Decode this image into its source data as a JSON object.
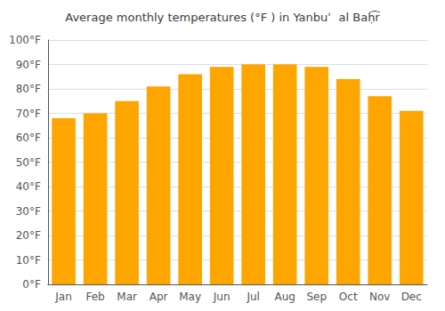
{
  "chart_data": {
    "type": "bar",
    "title": "Average monthly temperatures (°F ) in Yanbuʾ  al Baḥ͡r",
    "categories": [
      "Jan",
      "Feb",
      "Mar",
      "Apr",
      "May",
      "Jun",
      "Jul",
      "Aug",
      "Sep",
      "Oct",
      "Nov",
      "Dec"
    ],
    "values": [
      68,
      70,
      75,
      81,
      86,
      89,
      90,
      90,
      89,
      84,
      77,
      71
    ],
    "color": "#FFA500",
    "ylim": [
      0,
      100
    ],
    "yticks": [
      {
        "value": 0,
        "label": "0°F"
      },
      {
        "value": 10,
        "label": "10°F"
      },
      {
        "value": 20,
        "label": "20°F"
      },
      {
        "value": 30,
        "label": "30°F"
      },
      {
        "value": 40,
        "label": "40°F"
      },
      {
        "value": 50,
        "label": "50°F"
      },
      {
        "value": 60,
        "label": "60°F"
      },
      {
        "value": 70,
        "label": "70°F"
      },
      {
        "value": 80,
        "label": "80°F"
      },
      {
        "value": 90,
        "label": "90°F"
      },
      {
        "value": 100,
        "label": "100°F"
      }
    ],
    "grid": true
  }
}
